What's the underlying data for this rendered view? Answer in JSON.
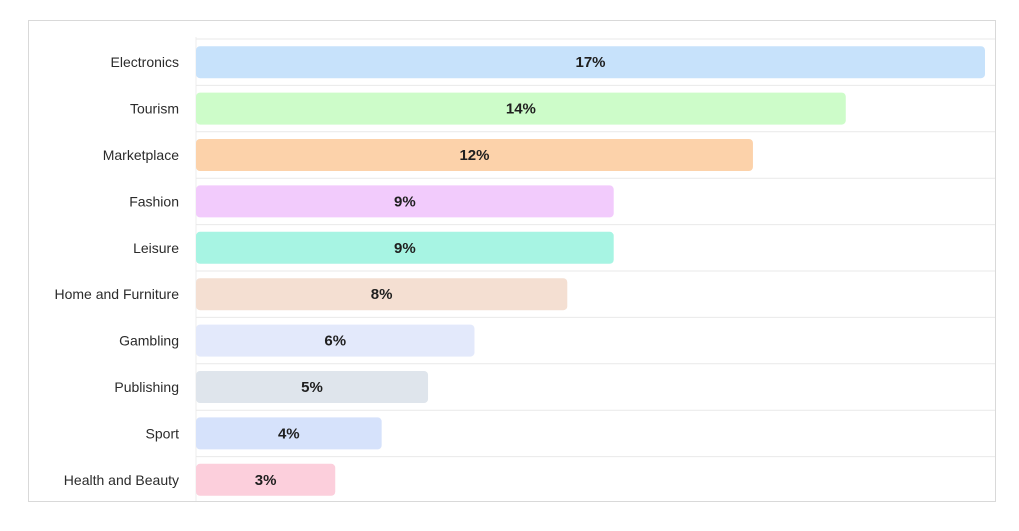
{
  "chart_data": {
    "type": "bar",
    "orientation": "horizontal",
    "categories": [
      "Electronics",
      "Tourism",
      "Marketplace",
      "Fashion",
      "Leisure",
      "Home and Furniture",
      "Gambling",
      "Publishing",
      "Sport",
      "Health and Beauty"
    ],
    "values": [
      17,
      14,
      12,
      9,
      9,
      8,
      6,
      5,
      4,
      3
    ],
    "value_labels": [
      "17%",
      "14%",
      "12%",
      "9%",
      "9%",
      "8%",
      "6%",
      "5%",
      "4%",
      "3%"
    ],
    "unit": "%",
    "xlim": [
      0,
      17
    ],
    "title": "",
    "xlabel": "",
    "ylabel": "",
    "grid": "horizontal row separators",
    "legend": "none",
    "colors": [
      "#c7e2fb",
      "#cdfcc9",
      "#fcd2aa",
      "#f2cbfc",
      "#a7f4e3",
      "#f4dfd2",
      "#e3e9fb",
      "#dfe5ec",
      "#d6e2fb",
      "#fccfdc"
    ]
  }
}
